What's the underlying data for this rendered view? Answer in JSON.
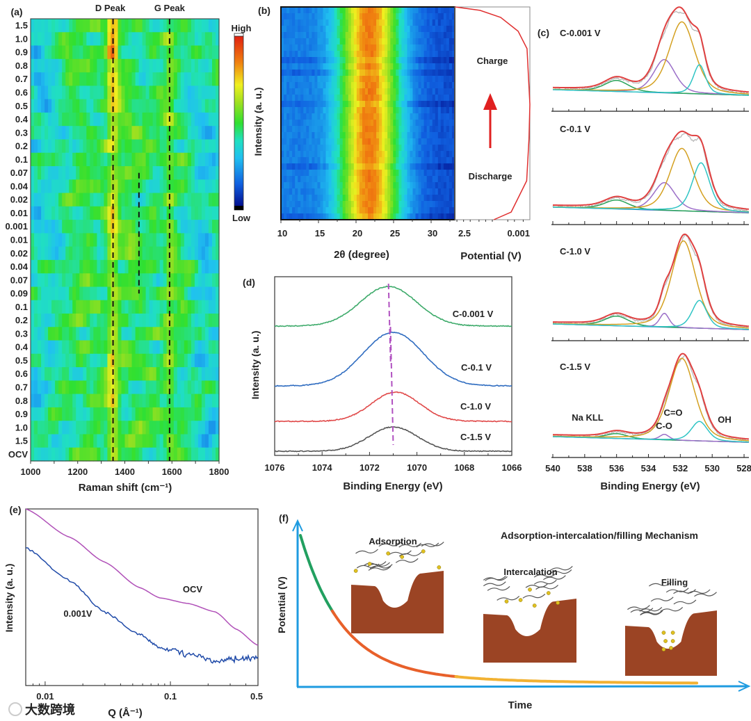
{
  "panels": {
    "a": "(a)",
    "b": "(b)",
    "c": "(c)",
    "d": "(d)",
    "e": "(e)",
    "f": "(f)"
  },
  "watermark": "大数跨境",
  "chart_data": [
    {
      "panel": "(a)",
      "type": "heatmap",
      "xlabel": "Raman shift (cm⁻¹)",
      "xlim": [
        1000,
        1800
      ],
      "xticks": [
        1000,
        1200,
        1400,
        1600,
        1800
      ],
      "yticks": [
        "1.5",
        "1.0",
        "0.9",
        "0.8",
        "0.7",
        "0.6",
        "0.5",
        "0.4",
        "0.3",
        "0.2",
        "0.1",
        "0.07",
        "0.04",
        "0.02",
        "0.01",
        "0.001",
        "0.01",
        "0.02",
        "0.04",
        "0.07",
        "0.09",
        "0.1",
        "0.2",
        "0.3",
        "0.4",
        "0.5",
        "0.6",
        "0.7",
        "0.8",
        "0.9",
        "1.0",
        "1.5",
        "OCV"
      ],
      "annotations": [
        {
          "text": "D Peak",
          "x": 1350
        },
        {
          "text": "G Peak",
          "x": 1590
        }
      ],
      "dashed_lines": [
        {
          "x": 1350,
          "rows": [
            0,
            32
          ]
        },
        {
          "x": 1590,
          "rows": [
            0,
            32
          ]
        },
        {
          "x": 1460,
          "rows": [
            11,
            20
          ]
        }
      ],
      "colorbar": {
        "label": "Intensity (a. u.)",
        "high": "High",
        "low": "Low"
      }
    },
    {
      "panel": "(b)",
      "type": "heatmap",
      "xlabel": "2θ (degree)",
      "xlim": [
        10,
        33
      ],
      "xticks": [
        10,
        15,
        20,
        25,
        30
      ],
      "peak_center": 21.8,
      "side_plot": {
        "type": "line",
        "xlabel": "Potential (V)",
        "xscale": "log",
        "xtick_labels": [
          "2.5",
          "0.001"
        ],
        "labels": [
          "Charge",
          "Discharge"
        ],
        "profile": [
          [
            0.043,
            0
          ],
          [
            0.007,
            0.036
          ],
          [
            0.0014,
            0.183
          ],
          [
            0.0011,
            0.379
          ],
          [
            0.001,
            0.542
          ],
          [
            0.00135,
            0.804
          ],
          [
            0.0034,
            0.886
          ],
          [
            0.021,
            0.951
          ],
          [
            0.18,
            0.984
          ],
          [
            2.4,
            1.0
          ]
        ]
      }
    },
    {
      "panel": "(c)",
      "type": "line",
      "xlabel": "Binding Energy (eV)",
      "xlim": [
        540,
        527.7
      ],
      "xticks": [
        540,
        538,
        536,
        534,
        532,
        530,
        528
      ],
      "colors": {
        "envelope": "#e04040",
        "raw": "#b8b8b8",
        "Na KLL": "#2aa35a",
        "C-O": "#9b6fc8",
        "C=O": "#d4a020",
        "OH": "#2ec4c4"
      },
      "component_labels": [
        {
          "text": "Na KLL",
          "color": "#1f9a4e"
        },
        {
          "text": "C=O",
          "color": "#f0a020"
        },
        {
          "text": "C-O",
          "color": "#a0207a"
        },
        {
          "text": "OH",
          "color": "#30c0d0"
        }
      ],
      "spectra": [
        {
          "label": "C-0.001 V",
          "components": [
            {
              "name": "Na KLL",
              "center": 536.0,
              "amp": 16,
              "fwhm": 1.8
            },
            {
              "name": "C-O",
              "center": 533.0,
              "amp": 48,
              "fwhm": 1.6
            },
            {
              "name": "C=O",
              "center": 531.9,
              "amp": 103,
              "fwhm": 1.9
            },
            {
              "name": "OH",
              "center": 530.8,
              "amp": 42,
              "fwhm": 0.9
            }
          ]
        },
        {
          "label": "C-0.1 V",
          "components": [
            {
              "name": "Na KLL",
              "center": 536.0,
              "amp": 13,
              "fwhm": 1.8
            },
            {
              "name": "C-O",
              "center": 533.0,
              "amp": 40,
              "fwhm": 1.6
            },
            {
              "name": "C=O",
              "center": 531.9,
              "amp": 90,
              "fwhm": 1.8
            },
            {
              "name": "OH",
              "center": 530.7,
              "amp": 70,
              "fwhm": 1.3
            }
          ]
        },
        {
          "label": "C-1.0 V",
          "components": [
            {
              "name": "Na KLL",
              "center": 536.0,
              "amp": 14,
              "fwhm": 1.8
            },
            {
              "name": "C-O",
              "center": 533.0,
              "amp": 20,
              "fwhm": 0.7
            },
            {
              "name": "C=O",
              "center": 531.8,
              "amp": 125,
              "fwhm": 1.8
            },
            {
              "name": "OH",
              "center": 530.8,
              "amp": 40,
              "fwhm": 1.1
            }
          ]
        },
        {
          "label": "C-1.5 V",
          "components": [
            {
              "name": "Na KLL",
              "center": 536.0,
              "amp": 7,
              "fwhm": 1.6
            },
            {
              "name": "C-O",
              "center": 533.0,
              "amp": 8,
              "fwhm": 0.7
            },
            {
              "name": "C=O",
              "center": 531.9,
              "amp": 118,
              "fwhm": 1.9
            },
            {
              "name": "OH",
              "center": 530.8,
              "amp": 28,
              "fwhm": 1.2
            }
          ]
        }
      ]
    },
    {
      "panel": "(d)",
      "type": "line",
      "xlabel": "Binding Energy (eV)",
      "ylabel": "Intensity (a. u.)",
      "xlim": [
        1076,
        1066
      ],
      "xticks": [
        1076,
        1074,
        1072,
        1070,
        1068,
        1066
      ],
      "series": [
        {
          "label": "C-0.001 V",
          "color": "#3daa6a",
          "center": 1071.2,
          "height": 57,
          "fwhm": 2.8,
          "offset": 186
        },
        {
          "label": "C-0.1 V",
          "color": "#2f6cc0",
          "center": 1071.0,
          "height": 77,
          "fwhm": 3.0,
          "offset": 100
        },
        {
          "label": "C-1.0 V",
          "color": "#e04848",
          "center": 1070.9,
          "height": 42,
          "fwhm": 2.4,
          "offset": 49
        },
        {
          "label": "C-1.5 V",
          "color": "#555555",
          "center": 1071.0,
          "height": 35,
          "fwhm": 2.4,
          "offset": 6
        }
      ],
      "marker_lines": [
        1071.2,
        1071.0
      ],
      "marker_color": "#b050c0"
    },
    {
      "panel": "(e)",
      "type": "line",
      "xlabel": "Q (Å⁻¹)",
      "ylabel": "Intensity (a. u.)",
      "xscale": "log",
      "xlim": [
        0.007,
        0.5
      ],
      "xticks": [
        {
          "value": 0.01,
          "label": "0.01"
        },
        {
          "value": 0.1,
          "label": "0.1"
        },
        {
          "value": 0.5,
          "label": "0.5"
        }
      ],
      "ylim": [
        0,
        1
      ],
      "series": [
        {
          "name": "OCV",
          "color": "#b050b8",
          "points": [
            [
              0.007,
              1.0
            ],
            [
              0.0157,
              0.84
            ],
            [
              0.0297,
              0.7
            ],
            [
              0.0565,
              0.555
            ],
            [
              0.0828,
              0.496
            ],
            [
              0.1377,
              0.465
            ],
            [
              0.2284,
              0.417
            ],
            [
              0.336,
              0.319
            ],
            [
              0.5,
              0.228
            ]
          ]
        },
        {
          "name": "0.001V",
          "color": "#1f4aa8",
          "points": [
            [
              0.007,
              0.78
            ],
            [
              0.0157,
              0.594
            ],
            [
              0.0297,
              0.417
            ],
            [
              0.0565,
              0.291
            ],
            [
              0.0828,
              0.213
            ],
            [
              0.1377,
              0.181
            ],
            [
              0.2284,
              0.134
            ],
            [
              0.336,
              0.15
            ],
            [
              0.5,
              0.161
            ]
          ]
        }
      ]
    },
    {
      "panel": "(f)",
      "type": "diagram",
      "title": "Adsorption-intercalation/filling Mechanism",
      "xlabel": "Time",
      "ylabel": "Potential (V)",
      "axis_color": "#1e9be0",
      "stages": [
        {
          "label": "Adsorption",
          "color": "#22a060"
        },
        {
          "label": "Intercalation",
          "color": "#e8602a"
        },
        {
          "label": "Filling",
          "color": "#f2b233"
        }
      ]
    }
  ]
}
